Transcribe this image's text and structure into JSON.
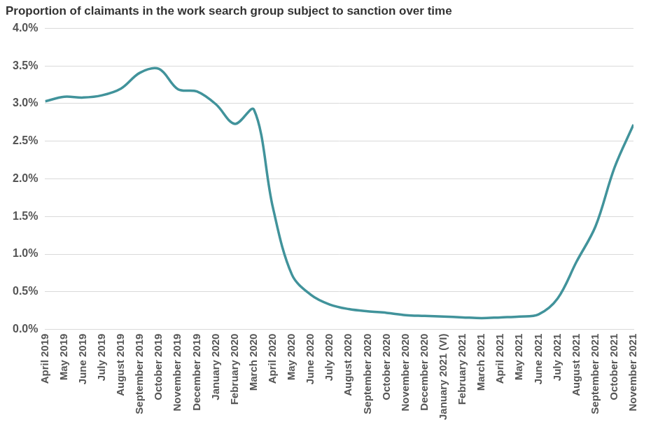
{
  "chart_data": {
    "type": "line",
    "title": "Proportion of claimants in the work search group subject to sanction over time",
    "categories": [
      "April 2019",
      "May 2019",
      "June 2019",
      "July 2019",
      "August 2019",
      "September 2019",
      "October 2019",
      "November 2019",
      "December 2019",
      "January 2020",
      "February 2020",
      "March 2020",
      "April 2020",
      "May 2020",
      "June 2020",
      "July 2020",
      "August 2020",
      "September 2020",
      "October 2020",
      "November 2020",
      "December 2020",
      "January 2021 (VI)",
      "February 2021",
      "March 2021",
      "April 2021",
      "May 2021",
      "June 2021",
      "July 2021",
      "August 2021",
      "September 2021",
      "October 2021",
      "November 2021"
    ],
    "values": [
      3.03,
      3.09,
      3.08,
      3.11,
      3.2,
      3.41,
      3.46,
      3.19,
      3.16,
      2.99,
      2.73,
      2.92,
      1.62,
      0.73,
      0.46,
      0.33,
      0.27,
      0.24,
      0.22,
      0.19,
      0.18,
      0.17,
      0.16,
      0.15,
      0.16,
      0.17,
      0.2,
      0.41,
      0.9,
      1.37,
      2.15,
      2.72
    ],
    "color": "#41939b",
    "ylim": [
      0,
      4
    ],
    "yticks": [
      {
        "value": 0,
        "label": "0.0%"
      },
      {
        "value": 0.5,
        "label": "0.5%"
      },
      {
        "value": 1,
        "label": "1.0%"
      },
      {
        "value": 1.5,
        "label": "1.5%"
      },
      {
        "value": 2,
        "label": "2.0%"
      },
      {
        "value": 2.5,
        "label": "2.5%"
      },
      {
        "value": 3,
        "label": "3.0%"
      },
      {
        "value": 3.5,
        "label": "3.5%"
      },
      {
        "value": 4,
        "label": "4.0%"
      }
    ],
    "grid": true
  }
}
